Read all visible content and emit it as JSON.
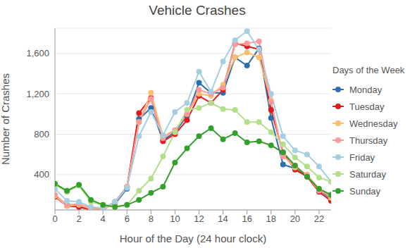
{
  "chart_data": {
    "type": "line",
    "title": "Vehicle Crashes",
    "x_label": "Hour of the Day (24 hour clock)",
    "y_label": "Number of Crashes",
    "legend_title": "Days of the Week",
    "legend": "right",
    "grid": true,
    "marker": "circle",
    "x": [
      0,
      1,
      2,
      3,
      4,
      5,
      6,
      7,
      8,
      9,
      10,
      11,
      12,
      13,
      14,
      15,
      16,
      17,
      18,
      19,
      20,
      21,
      22,
      23
    ],
    "xlim": [
      0,
      23
    ],
    "xticks": [
      0,
      2,
      4,
      6,
      8,
      10,
      12,
      14,
      16,
      18,
      20,
      22
    ],
    "ylim": [
      50,
      1850
    ],
    "yticks": [
      400,
      800,
      {
        "value": 1200,
        "label": "1,200"
      },
      {
        "value": 1600,
        "label": "1,600"
      }
    ],
    "series": [
      {
        "name": "Monday",
        "color": "#2b6fae",
        "values": [
          190,
          100,
          90,
          60,
          60,
          110,
          260,
          950,
          1060,
          740,
          820,
          980,
          1310,
          1210,
          1210,
          1560,
          1480,
          1650,
          960,
          500,
          460,
          390,
          250,
          160
        ]
      },
      {
        "name": "Tuesday",
        "color": "#e31a1c",
        "values": [
          180,
          90,
          80,
          50,
          60,
          130,
          280,
          1010,
          1160,
          730,
          800,
          940,
          1180,
          1110,
          1240,
          1700,
          1670,
          1640,
          1040,
          620,
          450,
          380,
          230,
          140
        ]
      },
      {
        "name": "Wednesday",
        "color": "#fdbf6f",
        "values": [
          190,
          90,
          100,
          60,
          50,
          120,
          280,
          920,
          1210,
          780,
          840,
          1000,
          1200,
          1180,
          1290,
          1560,
          1610,
          1560,
          1130,
          590,
          470,
          400,
          260,
          170
        ]
      },
      {
        "name": "Thursday",
        "color": "#fb9a99",
        "values": [
          200,
          100,
          110,
          70,
          60,
          130,
          270,
          920,
          1150,
          760,
          840,
          1000,
          1240,
          1200,
          1260,
          1690,
          1700,
          1720,
          1120,
          580,
          490,
          390,
          240,
          190
        ]
      },
      {
        "name": "Friday",
        "color": "#a6cee3",
        "values": [
          260,
          140,
          130,
          80,
          70,
          130,
          270,
          780,
          1020,
          790,
          1020,
          1110,
          1420,
          1220,
          1520,
          1730,
          1820,
          1640,
          1200,
          780,
          640,
          600,
          480,
          330
        ]
      },
      {
        "name": "Saturday",
        "color": "#b2df8a",
        "values": [
          300,
          230,
          290,
          130,
          100,
          80,
          100,
          240,
          360,
          580,
          820,
          1040,
          1060,
          1110,
          1050,
          1040,
          920,
          920,
          820,
          700,
          570,
          480,
          370,
          330
        ]
      },
      {
        "name": "Sunday",
        "color": "#33a02c",
        "values": [
          310,
          240,
          300,
          150,
          100,
          80,
          100,
          150,
          220,
          280,
          520,
          660,
          780,
          860,
          750,
          810,
          720,
          730,
          690,
          620,
          490,
          380,
          260,
          200
        ]
      }
    ]
  }
}
